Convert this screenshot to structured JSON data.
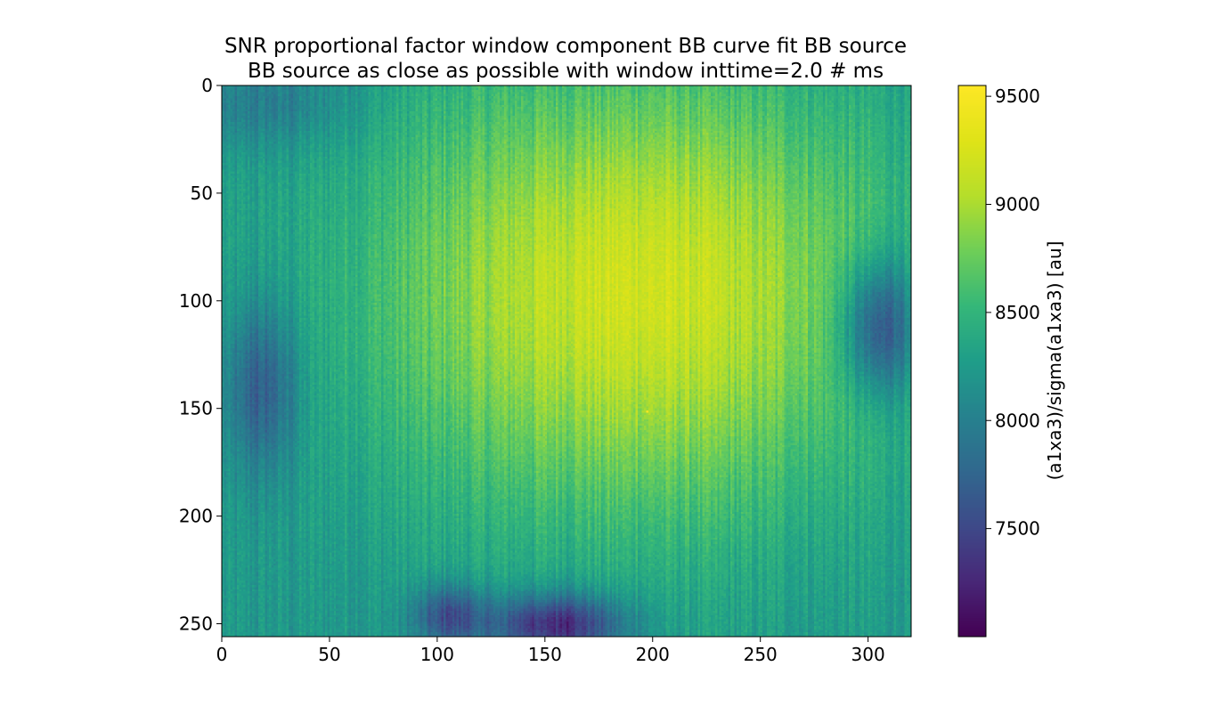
{
  "chart_data": {
    "type": "heatmap",
    "title": [
      "SNR proportional factor window component BB curve fit BB source",
      "BB source as close as possible with window inttime=2.0 # ms"
    ],
    "colormap": "viridis",
    "x_range": [
      0,
      320
    ],
    "y_range": [
      0,
      256
    ],
    "y_inverted": true,
    "x_ticks": [
      "0",
      "50",
      "100",
      "150",
      "200",
      "250",
      "300"
    ],
    "y_ticks": [
      "0",
      "50",
      "100",
      "150",
      "200",
      "250"
    ],
    "colorbar": {
      "label": "(a1xa3)/sigma(a1xa3) [au]",
      "range": [
        7000,
        9550
      ],
      "ticks": [
        "7500",
        "8000",
        "8500",
        "9000",
        "9500"
      ]
    },
    "field": {
      "base": 8200,
      "center_peak": {
        "x": 190,
        "y": 95,
        "amplitude": 1000,
        "sigma_x": 85,
        "sigma_y": 75
      },
      "dark_spots": [
        {
          "x": 305,
          "y": 112,
          "amplitude": 900,
          "sigma_x": 12,
          "sigma_y": 22
        },
        {
          "x": 18,
          "y": 140,
          "amplitude": 600,
          "sigma_x": 12,
          "sigma_y": 28
        },
        {
          "x": 105,
          "y": 246,
          "amplitude": 700,
          "sigma_x": 12,
          "sigma_y": 10
        },
        {
          "x": 155,
          "y": 250,
          "amplitude": 1000,
          "sigma_x": 22,
          "sigma_y": 10
        },
        {
          "x": 20,
          "y": 8,
          "amplitude": 300,
          "sigma_x": 30,
          "sigma_y": 15
        }
      ],
      "hot_pixel": {
        "x": 197,
        "y": 151,
        "value": 9500
      },
      "column_stripe_amplitude": 120,
      "noise_amplitude": 70
    }
  }
}
